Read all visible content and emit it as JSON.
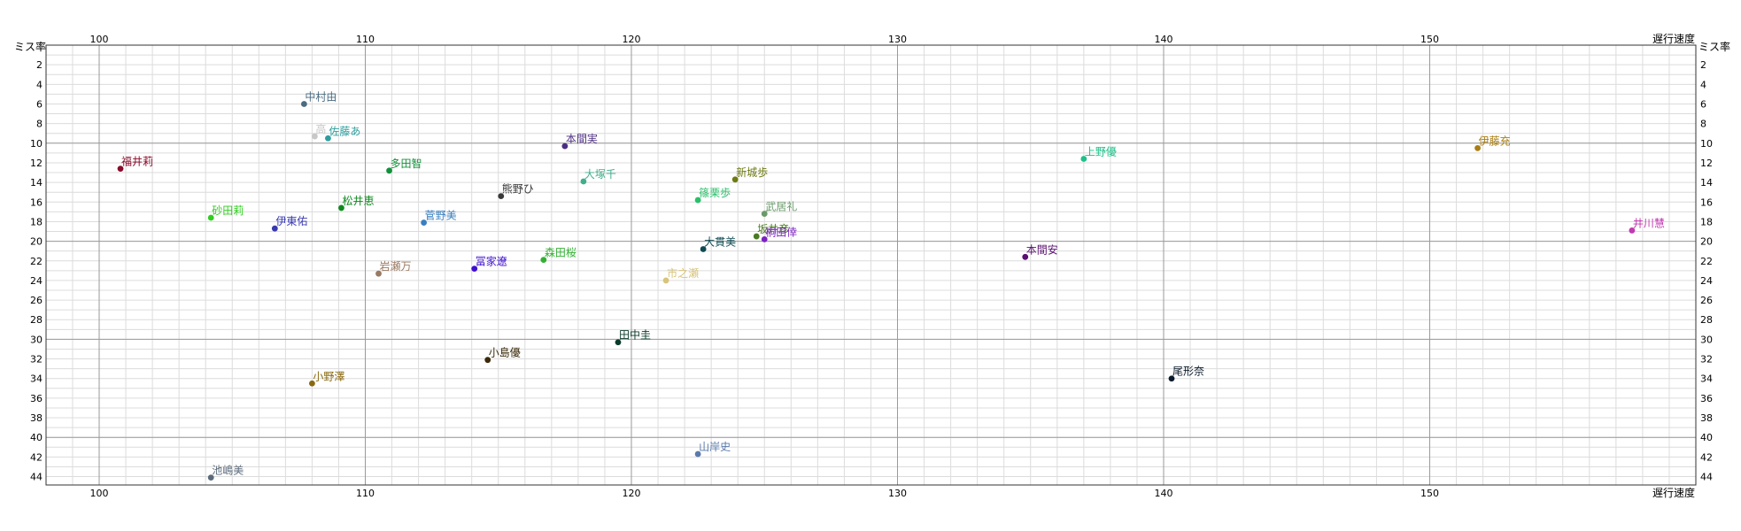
{
  "chart_data": {
    "type": "scatter",
    "xlabel": "遅行速度",
    "ylabel": "ミス率",
    "xlim": [
      98,
      160
    ],
    "ylim": [
      0,
      46
    ],
    "y_inverted": true,
    "grid": true,
    "x_ticks": [
      100,
      110,
      120,
      130,
      140,
      150
    ],
    "y_ticks": [
      2,
      4,
      6,
      8,
      10,
      12,
      14,
      16,
      18,
      20,
      22,
      24,
      26,
      28,
      30,
      32,
      34,
      36,
      38,
      40,
      42,
      44
    ],
    "points": [
      {
        "label": "中村由",
        "x": 107.7,
        "y": 6.0,
        "color": "#4a6c82"
      },
      {
        "label": "高",
        "x": 108.1,
        "y": 9.3,
        "color": "#c8c8c8"
      },
      {
        "label": "佐藤あ",
        "x": 108.6,
        "y": 9.5,
        "color": "#2e9e9e"
      },
      {
        "label": "本間実",
        "x": 117.5,
        "y": 10.3,
        "color": "#4b2e83"
      },
      {
        "label": "福井莉",
        "x": 100.8,
        "y": 12.6,
        "color": "#8b0a2b"
      },
      {
        "label": "多田智",
        "x": 110.9,
        "y": 12.8,
        "color": "#12913a"
      },
      {
        "label": "大塚千",
        "x": 118.2,
        "y": 13.9,
        "color": "#3fae8c"
      },
      {
        "label": "新城歩",
        "x": 123.9,
        "y": 13.7,
        "color": "#6e7a12"
      },
      {
        "label": "上野優",
        "x": 137.0,
        "y": 11.6,
        "color": "#1fc08a"
      },
      {
        "label": "伊藤充",
        "x": 151.8,
        "y": 10.5,
        "color": "#a87d12"
      },
      {
        "label": "熊野ひ",
        "x": 115.1,
        "y": 15.4,
        "color": "#3a3a3a"
      },
      {
        "label": "篠栗歩",
        "x": 122.5,
        "y": 15.8,
        "color": "#2abf6a"
      },
      {
        "label": "松井恵",
        "x": 109.1,
        "y": 16.6,
        "color": "#0f8a1f"
      },
      {
        "label": "武居礼",
        "x": 125.0,
        "y": 17.2,
        "color": "#6a9a6a"
      },
      {
        "label": "砂田莉",
        "x": 104.2,
        "y": 17.6,
        "color": "#33cc22"
      },
      {
        "label": "菅野美",
        "x": 112.2,
        "y": 18.1,
        "color": "#3a7fbf"
      },
      {
        "label": "伊東佑",
        "x": 106.6,
        "y": 18.7,
        "color": "#3a3ab0"
      },
      {
        "label": "坂井彦",
        "x": 124.7,
        "y": 19.5,
        "color": "#4b7a22"
      },
      {
        "label": "桐田倖",
        "x": 125.0,
        "y": 19.8,
        "color": "#7a22c0"
      },
      {
        "label": "井川慧",
        "x": 157.6,
        "y": 18.9,
        "color": "#c03ab0"
      },
      {
        "label": "大貫美",
        "x": 122.7,
        "y": 20.8,
        "color": "#0f4a52"
      },
      {
        "label": "本間安",
        "x": 134.8,
        "y": 21.6,
        "color": "#5a1070"
      },
      {
        "label": "森田桜",
        "x": 116.7,
        "y": 21.9,
        "color": "#33b033"
      },
      {
        "label": "冨家遼",
        "x": 114.1,
        "y": 22.8,
        "color": "#3f0fcf"
      },
      {
        "label": "岩瀬万",
        "x": 110.5,
        "y": 23.3,
        "color": "#9a7a62"
      },
      {
        "label": "市之瀬",
        "x": 121.3,
        "y": 24.0,
        "color": "#d8c47a"
      },
      {
        "label": "田中圭",
        "x": 119.5,
        "y": 30.3,
        "color": "#0a3a2a"
      },
      {
        "label": "小島優",
        "x": 114.6,
        "y": 32.1,
        "color": "#3a2a0a"
      },
      {
        "label": "小野澤",
        "x": 108.0,
        "y": 34.5,
        "color": "#8a6a10"
      },
      {
        "label": "尾形奈",
        "x": 140.3,
        "y": 34.0,
        "color": "#0a1a2a"
      },
      {
        "label": "山岸史",
        "x": 122.5,
        "y": 41.7,
        "color": "#5a7aaa"
      },
      {
        "label": "池嶋美",
        "x": 104.2,
        "y": 44.1,
        "color": "#5a6a7a"
      }
    ]
  }
}
